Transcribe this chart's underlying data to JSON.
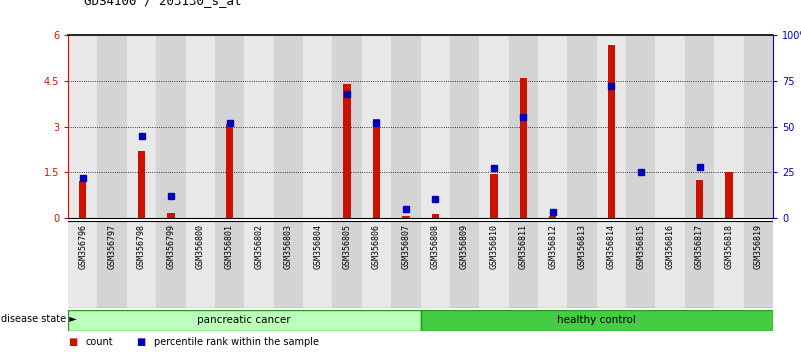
{
  "title": "GDS4100 / 203130_s_at",
  "samples": [
    "GSM356796",
    "GSM356797",
    "GSM356798",
    "GSM356799",
    "GSM356800",
    "GSM356801",
    "GSM356802",
    "GSM356803",
    "GSM356804",
    "GSM356805",
    "GSM356806",
    "GSM356807",
    "GSM356808",
    "GSM356809",
    "GSM356810",
    "GSM356811",
    "GSM356812",
    "GSM356813",
    "GSM356814",
    "GSM356815",
    "GSM356816",
    "GSM356817",
    "GSM356818",
    "GSM356819"
  ],
  "count": [
    1.2,
    0.0,
    2.2,
    0.15,
    0.0,
    3.1,
    0.0,
    0.0,
    0.0,
    4.4,
    3.25,
    0.05,
    0.12,
    0.0,
    1.45,
    4.6,
    0.05,
    0.0,
    5.7,
    0.0,
    0.0,
    1.25,
    1.5,
    0.0
  ],
  "percentile": [
    22,
    0,
    45,
    12,
    0,
    52,
    0,
    0,
    0,
    68,
    52,
    5,
    10,
    0,
    27,
    55,
    3,
    0,
    72,
    25,
    0,
    28,
    0,
    0
  ],
  "n_pancreatic": 12,
  "n_healthy": 12,
  "left_ylim": [
    0,
    6
  ],
  "right_ylim": [
    0,
    100
  ],
  "left_yticks": [
    0,
    1.5,
    3.0,
    4.5,
    6
  ],
  "right_yticks": [
    0,
    25,
    50,
    75,
    100
  ],
  "right_yticklabels": [
    "0",
    "25",
    "50",
    "75",
    "100%"
  ],
  "bar_color": "#cc1100",
  "dot_color": "#0000bb",
  "col_bg_even": "#e8e8e8",
  "col_bg_odd": "#d4d4d4",
  "pancreatic_color": "#bbffbb",
  "healthy_color": "#44cc44",
  "disease_border": "#229922",
  "fig_bg": "#ffffff",
  "plot_bg": "#ffffff"
}
